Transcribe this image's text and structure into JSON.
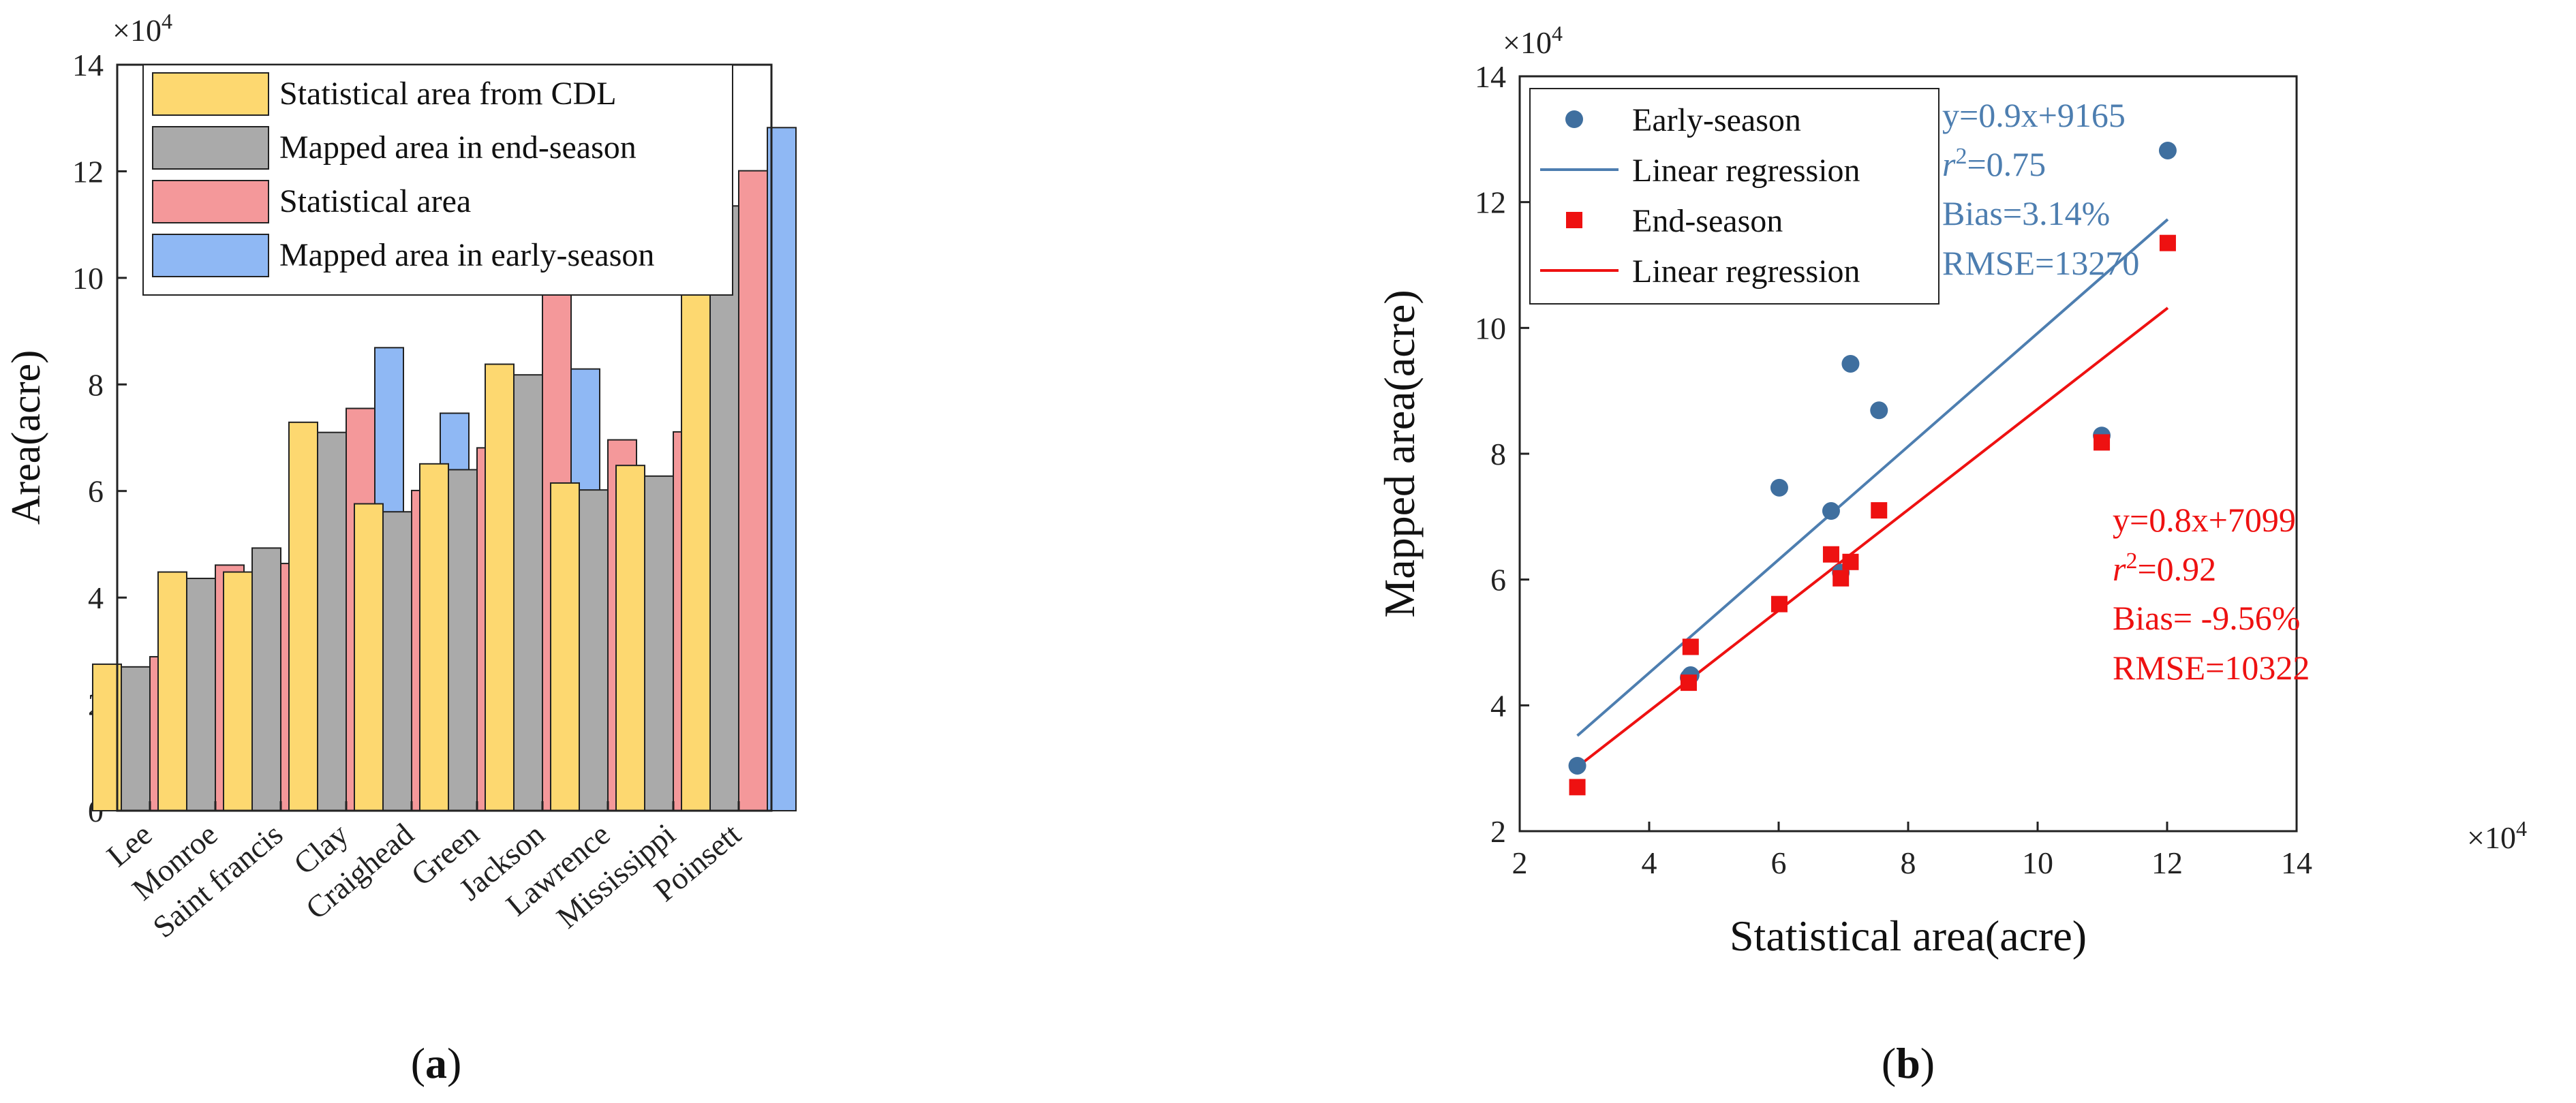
{
  "chart_data": [
    {
      "type": "bar",
      "panel_label": "a",
      "ylabel": "Area(acre)",
      "y_multiplier": "×10",
      "y_multiplier_exp": "4",
      "ylim": [
        0,
        14
      ],
      "yticks": [
        0,
        2,
        4,
        6,
        8,
        10,
        12,
        14
      ],
      "categories": [
        "Lee",
        "Monroe",
        "Saint francis",
        "Clay",
        "Craighead",
        "Green",
        "Jackson",
        "Lawrence",
        "Mississippi",
        "Poinsett"
      ],
      "series": [
        {
          "name": "Statistical area from CDL",
          "color": "#fdd870",
          "values": [
            2.75,
            4.48,
            4.48,
            7.29,
            5.76,
            6.51,
            8.38,
            6.15,
            6.48,
            11.55
          ]
        },
        {
          "name": "Mapped area in end-season",
          "color": "#aaaaaa",
          "values": [
            2.7,
            4.36,
            4.93,
            7.1,
            5.61,
            6.4,
            8.18,
            6.02,
            6.28,
            11.35
          ]
        },
        {
          "name": "Statistical area",
          "color": "#f4989a",
          "values": [
            2.89,
            4.61,
            4.64,
            7.55,
            6.01,
            6.81,
            10.99,
            6.96,
            7.11,
            12.01
          ]
        },
        {
          "name": "Mapped area in early-season",
          "color": "#8fb8f4",
          "values": [
            3.04,
            4.44,
            4.48,
            8.69,
            7.46,
            7.09,
            8.29,
            6.11,
            9.43,
            12.82
          ]
        }
      ],
      "legend_position": "top-left"
    },
    {
      "type": "scatter",
      "panel_label": "b",
      "xlabel": "Statistical area(acre)",
      "ylabel": "Mapped area(acre)",
      "x_multiplier": "×10",
      "x_multiplier_exp": "4",
      "y_multiplier": "×10",
      "y_multiplier_exp": "4",
      "xlim": [
        2,
        14
      ],
      "ylim": [
        2,
        14
      ],
      "xticks": [
        2,
        4,
        6,
        8,
        10,
        12,
        14
      ],
      "yticks": [
        2,
        4,
        6,
        8,
        10,
        12,
        14
      ],
      "series": [
        {
          "name": "Early-season",
          "marker": "circle",
          "color": "#3f6f9f",
          "x": [
            2.89,
            4.61,
            4.64,
            7.55,
            6.01,
            6.81,
            10.99,
            6.96,
            7.11,
            12.01
          ],
          "y": [
            3.04,
            4.44,
            4.48,
            8.69,
            7.46,
            7.09,
            8.29,
            6.11,
            9.43,
            12.82
          ]
        },
        {
          "name": "End-season",
          "marker": "square",
          "color": "#ee1111",
          "x": [
            2.89,
            4.61,
            4.64,
            7.55,
            6.01,
            6.81,
            10.99,
            6.96,
            7.11,
            12.01
          ],
          "y": [
            2.7,
            4.36,
            4.93,
            7.1,
            5.61,
            6.4,
            8.18,
            6.02,
            6.28,
            11.35
          ]
        }
      ],
      "regressions": [
        {
          "name": "Linear regression",
          "color": "#4d7eb0",
          "slope": 0.9,
          "intercept": 0.9165,
          "x_range": [
            2.89,
            12.01
          ]
        },
        {
          "name": "Linear regression",
          "color": "#ee1111",
          "slope": 0.8,
          "intercept": 0.7099,
          "x_range": [
            2.89,
            12.01
          ]
        }
      ],
      "annotations": {
        "early": {
          "equation": "y=0.9x+9165",
          "r2_prefix": "r",
          "r2_exp": "2",
          "r2_value": "=0.75",
          "bias": "Bias=3.14%",
          "rmse": "RMSE=13270",
          "color": "#4d7eb0"
        },
        "end": {
          "equation": "y=0.8x+7099",
          "r2_prefix": "r",
          "r2_exp": "2",
          "r2_value": "=0.92",
          "bias": "Bias= -9.56%",
          "rmse": "RMSE=10322",
          "color": "#ee1111"
        }
      },
      "legend_position": "top-left"
    }
  ]
}
